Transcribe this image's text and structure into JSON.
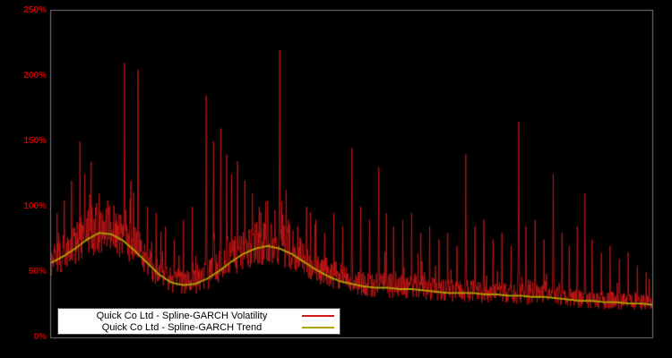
{
  "chart_data": {
    "type": "line",
    "title": "",
    "xlabel": "",
    "ylabel": "",
    "ylim": [
      0,
      250
    ],
    "y_unit": "%",
    "y_ticks": [
      "0%",
      "50%",
      "100%",
      "150%",
      "200%",
      "250%"
    ],
    "x_tick_labels": [],
    "grid": false,
    "background": "#000000",
    "plot_border_color": "#787878",
    "legend_position": "lower-left",
    "series": [
      {
        "name": "Quick Co Ltd - Spline-GARCH Volatility",
        "color": "#d01818",
        "style": "noisy-line"
      },
      {
        "name": "Quick Co Ltd - Spline-GARCH Trend",
        "color": "#b0a400",
        "style": "smooth-line"
      }
    ],
    "trend_points": [
      [
        0.0,
        57
      ],
      [
        0.02,
        62
      ],
      [
        0.04,
        68
      ],
      [
        0.06,
        75
      ],
      [
        0.08,
        80
      ],
      [
        0.1,
        79
      ],
      [
        0.12,
        74
      ],
      [
        0.14,
        66
      ],
      [
        0.16,
        57
      ],
      [
        0.18,
        48
      ],
      [
        0.2,
        42
      ],
      [
        0.22,
        40
      ],
      [
        0.24,
        41
      ],
      [
        0.26,
        45
      ],
      [
        0.28,
        51
      ],
      [
        0.3,
        58
      ],
      [
        0.32,
        64
      ],
      [
        0.34,
        68
      ],
      [
        0.36,
        70
      ],
      [
        0.38,
        68
      ],
      [
        0.4,
        64
      ],
      [
        0.42,
        58
      ],
      [
        0.44,
        52
      ],
      [
        0.46,
        47
      ],
      [
        0.48,
        43
      ],
      [
        0.5,
        41
      ],
      [
        0.52,
        39
      ],
      [
        0.54,
        38
      ],
      [
        0.56,
        38
      ],
      [
        0.58,
        37
      ],
      [
        0.6,
        37
      ],
      [
        0.62,
        36
      ],
      [
        0.64,
        35
      ],
      [
        0.66,
        34
      ],
      [
        0.68,
        34
      ],
      [
        0.7,
        34
      ],
      [
        0.72,
        33
      ],
      [
        0.74,
        33
      ],
      [
        0.76,
        32
      ],
      [
        0.78,
        32
      ],
      [
        0.8,
        31
      ],
      [
        0.82,
        31
      ],
      [
        0.84,
        30
      ],
      [
        0.86,
        29
      ],
      [
        0.88,
        28
      ],
      [
        0.9,
        28
      ],
      [
        0.92,
        27
      ],
      [
        0.94,
        27
      ],
      [
        0.96,
        26
      ],
      [
        0.98,
        26
      ],
      [
        1.0,
        25
      ]
    ],
    "spikes": [
      [
        0.01,
        95
      ],
      [
        0.022,
        105
      ],
      [
        0.034,
        120
      ],
      [
        0.048,
        150
      ],
      [
        0.056,
        125
      ],
      [
        0.068,
        100
      ],
      [
        0.08,
        110
      ],
      [
        0.094,
        105
      ],
      [
        0.108,
        95
      ],
      [
        0.122,
        210
      ],
      [
        0.133,
        120
      ],
      [
        0.145,
        205
      ],
      [
        0.16,
        100
      ],
      [
        0.175,
        95
      ],
      [
        0.19,
        85
      ],
      [
        0.205,
        75
      ],
      [
        0.22,
        90
      ],
      [
        0.235,
        100
      ],
      [
        0.258,
        185
      ],
      [
        0.27,
        150
      ],
      [
        0.282,
        160
      ],
      [
        0.292,
        140
      ],
      [
        0.3,
        125
      ],
      [
        0.31,
        135
      ],
      [
        0.322,
        120
      ],
      [
        0.335,
        110
      ],
      [
        0.346,
        100
      ],
      [
        0.36,
        105
      ],
      [
        0.372,
        95
      ],
      [
        0.38,
        220
      ],
      [
        0.395,
        90
      ],
      [
        0.41,
        85
      ],
      [
        0.425,
        100
      ],
      [
        0.44,
        90
      ],
      [
        0.455,
        80
      ],
      [
        0.47,
        95
      ],
      [
        0.485,
        85
      ],
      [
        0.5,
        145
      ],
      [
        0.515,
        100
      ],
      [
        0.53,
        90
      ],
      [
        0.545,
        130
      ],
      [
        0.558,
        95
      ],
      [
        0.57,
        85
      ],
      [
        0.585,
        90
      ],
      [
        0.6,
        95
      ],
      [
        0.615,
        80
      ],
      [
        0.63,
        85
      ],
      [
        0.645,
        75
      ],
      [
        0.66,
        80
      ],
      [
        0.675,
        70
      ],
      [
        0.69,
        140
      ],
      [
        0.705,
        85
      ],
      [
        0.72,
        90
      ],
      [
        0.735,
        75
      ],
      [
        0.75,
        80
      ],
      [
        0.765,
        70
      ],
      [
        0.778,
        165
      ],
      [
        0.79,
        85
      ],
      [
        0.805,
        90
      ],
      [
        0.82,
        75
      ],
      [
        0.835,
        125
      ],
      [
        0.85,
        80
      ],
      [
        0.862,
        70
      ],
      [
        0.875,
        85
      ],
      [
        0.888,
        110
      ],
      [
        0.9,
        75
      ],
      [
        0.915,
        65
      ],
      [
        0.93,
        70
      ],
      [
        0.945,
        60
      ],
      [
        0.96,
        65
      ],
      [
        0.975,
        55
      ],
      [
        0.99,
        50
      ]
    ],
    "noise": {
      "seed": 1234567,
      "low": 0.8,
      "high": 1.3,
      "burst_prob": 0.06,
      "burst_extra": 0.6,
      "points": 1500
    }
  },
  "axis": {
    "tick_color": "#cc0000"
  },
  "legend": {
    "background": "#ffffff",
    "border": "#4d4d4d"
  }
}
